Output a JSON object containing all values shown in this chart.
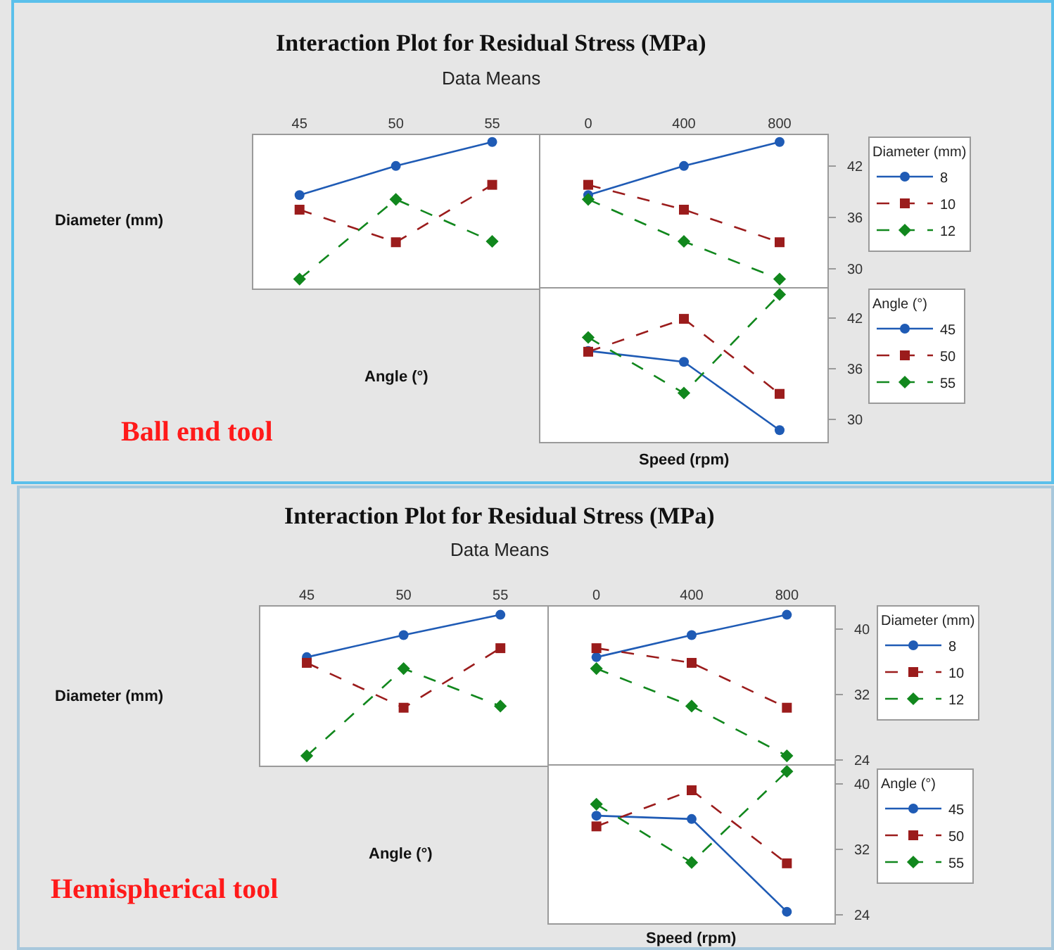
{
  "chart_data": [
    {
      "type": "line",
      "title": "Interaction Plot for Residual Stress (MPa)",
      "subtitle": "Data Means",
      "ylabel": "Diameter (mm)",
      "x": [
        45,
        50,
        55
      ],
      "xlim": [
        42.6,
        57.5
      ],
      "xticks": [
        45,
        50,
        55
      ],
      "ylim": [
        27.7,
        45.6
      ],
      "tick_labels": "x",
      "series": [
        {
          "color": "#1f5bb5",
          "marker": "circle",
          "line_style": "solid",
          "values": [
            38.6,
            42.0,
            44.8
          ]
        },
        {
          "color": "#9b1c1c",
          "marker": "square",
          "line_style": "dashed",
          "values": [
            36.9,
            33.1,
            39.8
          ]
        },
        {
          "color": "#11871d",
          "marker": "diamond",
          "line_style": "dashed",
          "values": [
            28.8,
            38.1,
            33.2
          ]
        }
      ]
    },
    {
      "type": "line",
      "legend_title": "Diameter (mm)",
      "legend": "right",
      "x": [
        0,
        400,
        800
      ],
      "xlim": [
        -200,
        1000
      ],
      "xticks": [
        0,
        400,
        800
      ],
      "ylim": [
        27.7,
        45.6
      ],
      "yticks": [
        30,
        36,
        42
      ],
      "series": [
        {
          "name": "8",
          "color": "#1f5bb5",
          "marker": "circle",
          "line_style": "solid",
          "values": [
            38.6,
            42.0,
            44.8
          ]
        },
        {
          "name": "10",
          "color": "#9b1c1c",
          "marker": "square",
          "line_style": "dashed",
          "values": [
            39.8,
            36.9,
            33.1
          ]
        },
        {
          "name": "12",
          "color": "#11871d",
          "marker": "diamond",
          "line_style": "dashed",
          "values": [
            38.1,
            33.2,
            28.8
          ]
        }
      ]
    },
    {
      "type": "line",
      "ylabel": "Angle (°)",
      "xlabel": "Speed (rpm)",
      "legend_title": "Angle (°)",
      "legend": "right",
      "annotations": [
        "Ball end tool"
      ],
      "x": [
        0,
        400,
        800
      ],
      "xlim": [
        -200,
        1000
      ],
      "ylim": [
        27.3,
        45.5
      ],
      "yticks": [
        30,
        36,
        42
      ],
      "tick_labels": "y",
      "series": [
        {
          "name": "45",
          "color": "#1f5bb5",
          "marker": "circle",
          "line_style": "solid",
          "values": [
            38.1,
            36.8,
            28.7
          ]
        },
        {
          "name": "50",
          "color": "#9b1c1c",
          "marker": "square",
          "line_style": "dashed",
          "values": [
            38.0,
            41.9,
            33.0
          ]
        },
        {
          "name": "55",
          "color": "#11871d",
          "marker": "diamond",
          "line_style": "dashed",
          "values": [
            39.7,
            33.1,
            44.8
          ]
        }
      ]
    },
    {
      "type": "line",
      "title": "Interaction Plot for Residual Stress (MPa)",
      "subtitle": "Data Means",
      "ylabel": "Diameter (mm)",
      "x": [
        45,
        50,
        55
      ],
      "xlim": [
        42.6,
        57.5
      ],
      "xticks": [
        45,
        50,
        55
      ],
      "ylim": [
        23.3,
        42.8
      ],
      "tick_labels": "x",
      "series": [
        {
          "color": "#1f5bb5",
          "marker": "circle",
          "line_style": "solid",
          "values": [
            36.6,
            39.3,
            41.8
          ]
        },
        {
          "color": "#9b1c1c",
          "marker": "square",
          "line_style": "dashed",
          "values": [
            35.9,
            30.4,
            37.7
          ]
        },
        {
          "color": "#11871d",
          "marker": "diamond",
          "line_style": "dashed",
          "values": [
            24.5,
            35.2,
            30.6
          ]
        }
      ]
    },
    {
      "type": "line",
      "legend_title": "Diameter (mm)",
      "legend": "right",
      "x": [
        0,
        400,
        800
      ],
      "xlim": [
        -200,
        1000
      ],
      "xticks": [
        0,
        400,
        800
      ],
      "ylim": [
        23.3,
        42.8
      ],
      "yticks": [
        24,
        32,
        40
      ],
      "series": [
        {
          "name": "8",
          "color": "#1f5bb5",
          "marker": "circle",
          "line_style": "solid",
          "values": [
            36.6,
            39.3,
            41.8
          ]
        },
        {
          "name": "10",
          "color": "#9b1c1c",
          "marker": "square",
          "line_style": "dashed",
          "values": [
            37.7,
            35.9,
            30.4
          ]
        },
        {
          "name": "12",
          "color": "#11871d",
          "marker": "diamond",
          "line_style": "dashed",
          "values": [
            35.2,
            30.6,
            24.5
          ]
        }
      ]
    },
    {
      "type": "line",
      "ylabel": "Angle (°)",
      "xlabel": "Speed (rpm)",
      "legend_title": "Angle (°)",
      "legend": "right",
      "annotations": [
        "Hemispherical tool"
      ],
      "x": [
        0,
        400,
        800
      ],
      "xlim": [
        -200,
        1000
      ],
      "ylim": [
        23.0,
        42.2
      ],
      "yticks": [
        24,
        32,
        40
      ],
      "tick_labels": "y",
      "series": [
        {
          "name": "45",
          "color": "#1f5bb5",
          "marker": "circle",
          "line_style": "solid",
          "values": [
            36.1,
            35.7,
            24.4
          ]
        },
        {
          "name": "50",
          "color": "#9b1c1c",
          "marker": "square",
          "line_style": "dashed",
          "values": [
            34.8,
            39.2,
            30.3
          ]
        },
        {
          "name": "55",
          "color": "#11871d",
          "marker": "diamond",
          "line_style": "dashed",
          "values": [
            37.5,
            30.4,
            41.5
          ]
        }
      ]
    }
  ]
}
